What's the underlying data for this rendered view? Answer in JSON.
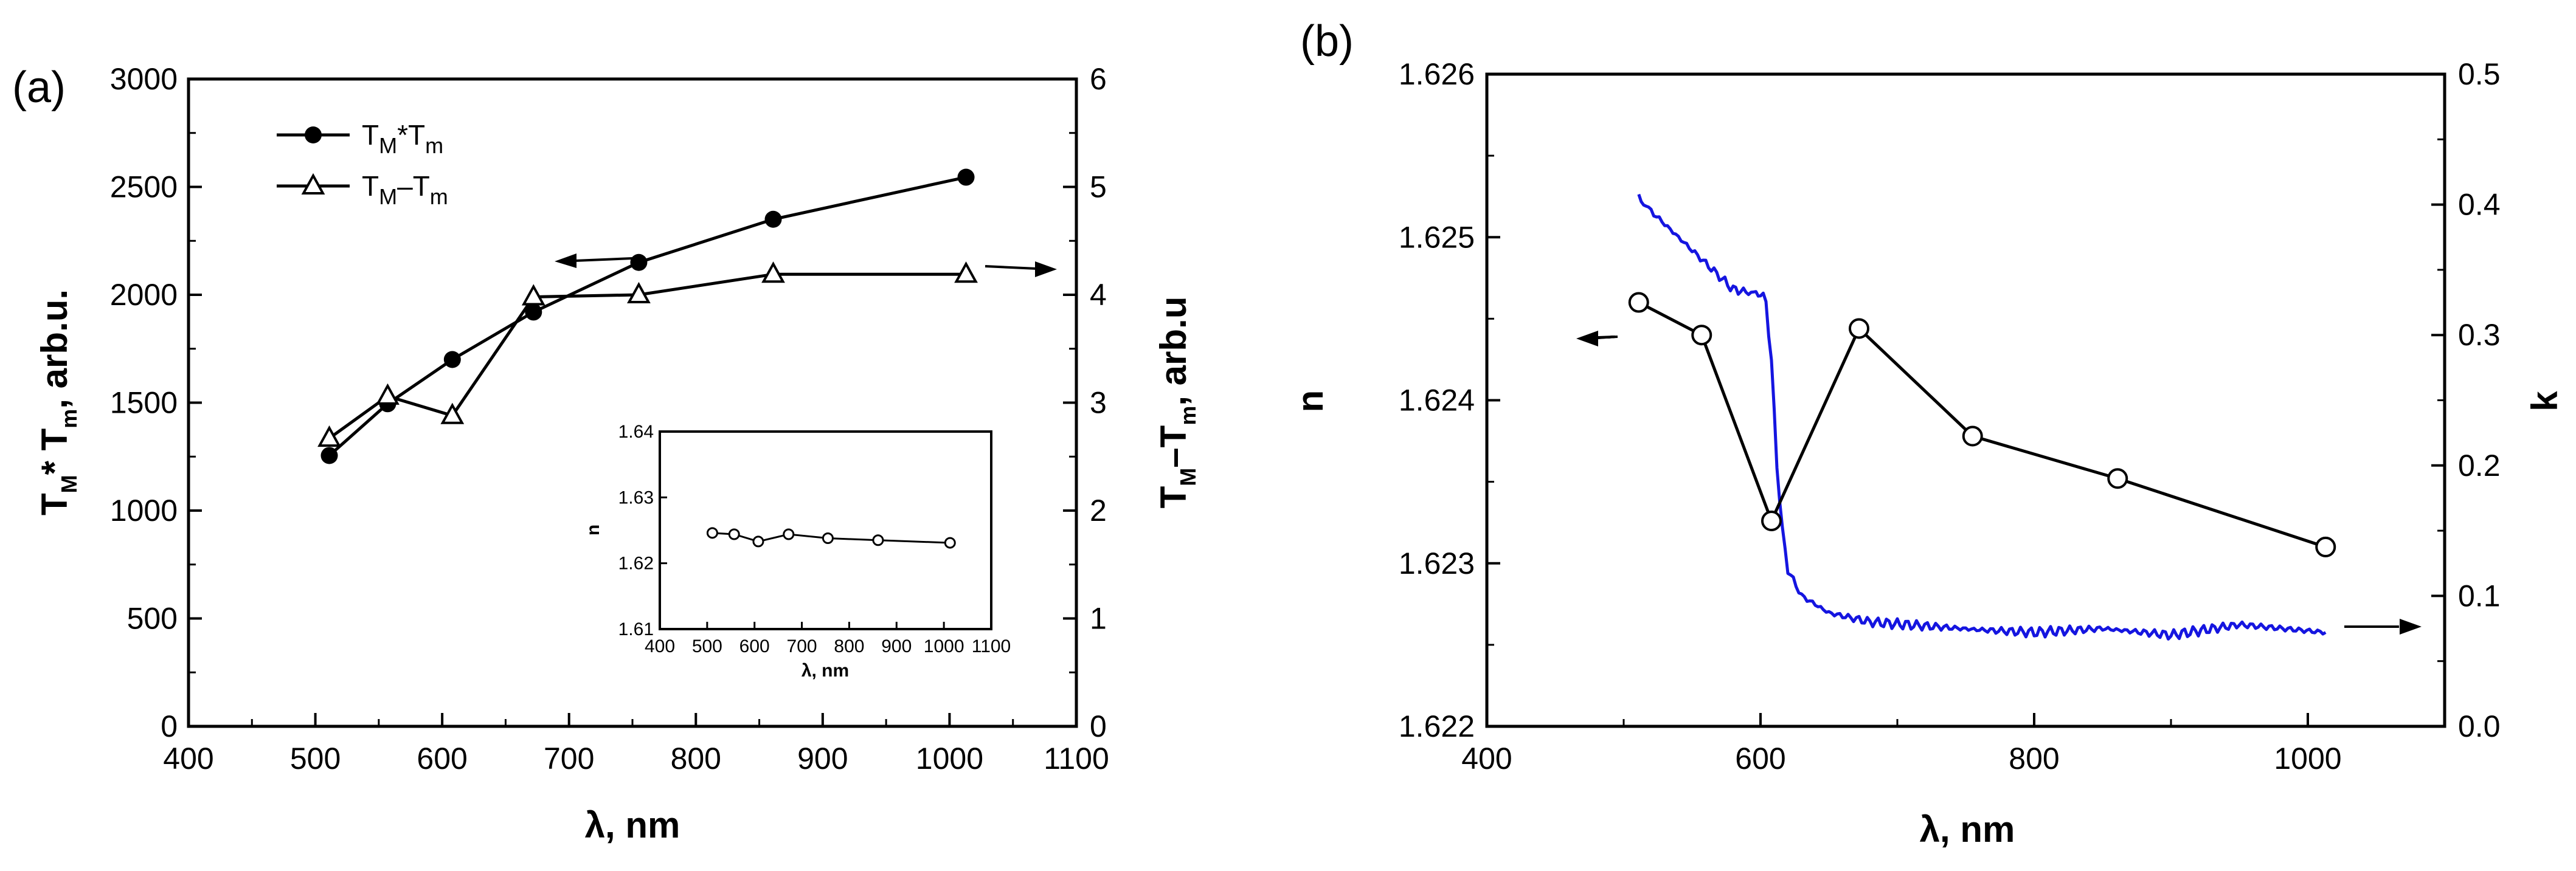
{
  "chart_data": [
    {
      "panel": "(a)",
      "type": "line",
      "x": [
        511,
        557,
        608,
        672,
        755,
        861,
        1013
      ],
      "xlabel": "λ, nm",
      "xlim": [
        400,
        1100
      ],
      "xticks": [
        400,
        500,
        600,
        700,
        800,
        900,
        1000,
        1100
      ],
      "ylabel_left": "T_M* T_m, arb.u.",
      "ylim_left": [
        0,
        3000
      ],
      "yticks_left": [
        0,
        500,
        1000,
        1500,
        2000,
        2500,
        3000
      ],
      "ylabel_right": "T_M–T_m, arb.u",
      "ylim_right": [
        0,
        6
      ],
      "yticks_right": [
        0,
        1,
        2,
        3,
        4,
        5,
        6
      ],
      "series": [
        {
          "name": "T_M*T_m",
          "axis": "left",
          "marker": "filled-circle",
          "x": [
            511,
            557,
            608,
            672,
            755,
            861,
            1013
          ],
          "values": [
            1255,
            1495,
            1700,
            1920,
            2150,
            2350,
            2545
          ]
        },
        {
          "name": "T_M–T_m",
          "axis": "right",
          "marker": "open-triangle",
          "x": [
            511,
            557,
            608,
            672,
            755,
            861,
            1013
          ],
          "values": [
            2.67,
            3.06,
            2.88,
            3.98,
            4.0,
            4.19,
            4.19
          ]
        }
      ],
      "legend": [
        {
          "main": "T",
          "sub1": "M",
          "sep": "*T",
          "sub2": "m"
        },
        {
          "main": "T",
          "sub1": "M",
          "sep": "–T",
          "sub2": "m"
        }
      ],
      "inset": {
        "type": "line",
        "xlabel": "λ, nm",
        "ylabel": "n",
        "xlim": [
          400,
          1100
        ],
        "xticks": [
          400,
          500,
          600,
          700,
          800,
          900,
          1000,
          1100
        ],
        "ylim": [
          1.61,
          1.64
        ],
        "yticks": [
          "1.61",
          "1.62",
          "1.63",
          "1.64"
        ],
        "x": [
          511,
          557,
          608,
          672,
          755,
          861,
          1013
        ],
        "values": [
          1.6246,
          1.6244,
          1.6233,
          1.6244,
          1.6238,
          1.6235,
          1.6231
        ]
      }
    },
    {
      "panel": "(b)",
      "type": "line",
      "xlabel": "λ, nm",
      "xlim": [
        400,
        1100
      ],
      "xticks": [
        400,
        600,
        800,
        1000
      ],
      "ylabel_left": "n",
      "ylim_left": [
        1.622,
        1.626
      ],
      "yticks_left": [
        "1.622",
        "1.623",
        "1.624",
        "1.625",
        "1.626"
      ],
      "ylabel_right": "k",
      "ylim_right": [
        0.0,
        0.5
      ],
      "yticks_right": [
        "0.0",
        "0.1",
        "0.2",
        "0.3",
        "0.4",
        "0.5"
      ],
      "series": [
        {
          "name": "n",
          "axis": "left",
          "marker": "open-circle",
          "color": "#000000",
          "x": [
            511,
            557,
            608,
            672,
            755,
            861,
            1013
          ],
          "values": [
            1.6246,
            1.6244,
            1.62326,
            1.62444,
            1.62378,
            1.62352,
            1.6231
          ]
        },
        {
          "name": "k",
          "axis": "right",
          "marker": "none",
          "color": "#1515e0",
          "x": [
            511,
            520,
            540,
            560,
            580,
            595,
            600,
            604,
            608,
            612,
            616,
            620,
            630,
            650,
            680,
            720,
            760,
            800,
            850,
            900,
            950,
            1013
          ],
          "values": [
            0.405,
            0.395,
            0.375,
            0.355,
            0.335,
            0.332,
            0.332,
            0.325,
            0.28,
            0.2,
            0.15,
            0.12,
            0.1,
            0.087,
            0.08,
            0.077,
            0.074,
            0.072,
            0.075,
            0.07,
            0.078,
            0.072
          ]
        }
      ]
    }
  ]
}
